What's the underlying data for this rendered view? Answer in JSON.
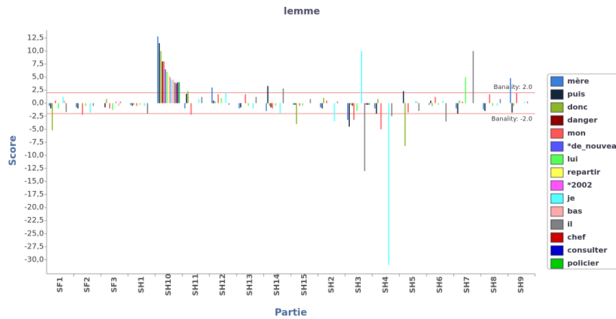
{
  "chart_data": {
    "type": "bar",
    "title": "lemme",
    "x_label": "Partie",
    "y_label": "Score",
    "categories": [
      "SF1",
      "SF2",
      "SF3",
      "SH1",
      "SH10",
      "SH11",
      "SH12",
      "SH13",
      "SH14",
      "SH15",
      "SH2",
      "SH3",
      "SH4",
      "SH5",
      "SH6",
      "SH7",
      "SH8",
      "SH9"
    ],
    "series": [
      {
        "name": "mère",
        "color": "#3a7fd9",
        "values": [
          -0.5,
          -0.8,
          0,
          -0.3,
          12.8,
          -1,
          3,
          -1,
          -1.5,
          -0.3,
          -0.8,
          -3.2,
          -1,
          0,
          -0.3,
          -1,
          -1.2,
          4.8
        ]
      },
      {
        "name": "puis",
        "color": "#14263a",
        "values": [
          -1,
          -1,
          -0.8,
          -0.5,
          11.5,
          1.8,
          0.5,
          -0.8,
          3.3,
          -0.3,
          -1,
          -4.5,
          -2,
          2.3,
          0.5,
          -2,
          -1.5,
          -1.8
        ]
      },
      {
        "name": "donc",
        "color": "#8db52a",
        "values": [
          -5.2,
          0,
          0.8,
          -0.3,
          10,
          2.3,
          0.3,
          0,
          -0.5,
          -4,
          1,
          -0.3,
          0.8,
          -8.2,
          -0.5,
          0.5,
          0,
          -0.5
        ]
      },
      {
        "name": "danger",
        "color": "#8b0000",
        "values": [
          0,
          0,
          0,
          0,
          8,
          0,
          0,
          0,
          -0.8,
          0,
          0,
          -0.5,
          0,
          0,
          0,
          0,
          0,
          0
        ]
      },
      {
        "name": "mon",
        "color": "#ff5555",
        "values": [
          0.5,
          -2.2,
          -1,
          -0.5,
          8,
          -2.2,
          1.7,
          1.7,
          -1,
          -0.5,
          0.5,
          -3.2,
          -5,
          -1.8,
          1.2,
          0.3,
          1.7,
          2
        ]
      },
      {
        "name": "*de_nouveau",
        "color": "#5555ff",
        "values": [
          0,
          0,
          0,
          0,
          6.5,
          0,
          0,
          0,
          0,
          0,
          0,
          0,
          0,
          0,
          0,
          0,
          0,
          0
        ]
      },
      {
        "name": "lui",
        "color": "#55ff55",
        "values": [
          -1,
          -0.5,
          -1.3,
          -0.3,
          6,
          0,
          1,
          -0.5,
          -0.5,
          -0.5,
          0,
          -1.5,
          0,
          0,
          -0.3,
          5,
          -0.5,
          0
        ]
      },
      {
        "name": "repartir",
        "color": "#ffff55",
        "values": [
          0,
          0,
          0,
          0,
          5.5,
          0,
          0,
          0,
          0,
          0,
          0,
          0,
          0,
          0,
          0,
          0,
          0,
          0
        ]
      },
      {
        "name": "*2002",
        "color": "#ff55ff",
        "values": [
          0,
          0,
          0.3,
          0,
          5,
          0,
          0,
          0,
          0,
          0,
          0,
          0,
          0,
          0,
          0,
          0,
          0,
          0
        ]
      },
      {
        "name": "je",
        "color": "#55ffff",
        "values": [
          1.2,
          -1.8,
          0,
          -0.5,
          4.5,
          0.8,
          2,
          -1,
          -2,
          0,
          -3.5,
          10,
          -31,
          0.5,
          0.5,
          0,
          -0.5,
          0.3
        ]
      },
      {
        "name": "bas",
        "color": "#ffaaaa",
        "values": [
          0.5,
          0,
          -0.5,
          0,
          4.5,
          0,
          0,
          0,
          0,
          0,
          0,
          0,
          0,
          0.3,
          0,
          0,
          0,
          0
        ]
      },
      {
        "name": "il",
        "color": "#808080",
        "values": [
          -1.7,
          -0.5,
          0.3,
          -2,
          4,
          1.2,
          -0.3,
          1.2,
          2.8,
          0.8,
          0.3,
          -13,
          -2.5,
          -1.5,
          -3.5,
          10,
          0.8,
          0.3
        ]
      },
      {
        "name": "chef",
        "color": "#cc0000",
        "values": [
          0,
          0,
          0,
          0,
          3.8,
          0,
          0,
          0,
          0,
          0,
          0,
          -0.3,
          0,
          0,
          0,
          0,
          0,
          0
        ]
      },
      {
        "name": "consulter",
        "color": "#0000cc",
        "values": [
          0,
          0,
          0,
          0,
          4,
          0,
          0,
          0,
          0,
          0,
          0,
          -0.3,
          0,
          0,
          0,
          0,
          0,
          0
        ]
      },
      {
        "name": "policier",
        "color": "#00cc00",
        "values": [
          0,
          0,
          0,
          0,
          4,
          0,
          0,
          0,
          0,
          0,
          0,
          -0.3,
          0,
          0,
          0,
          0,
          0,
          0
        ]
      }
    ],
    "ylim": [
      -32.7,
      14
    ],
    "yticks": [
      {
        "value": -30,
        "label": "-30,0"
      },
      {
        "value": -27.5,
        "label": "-27,5"
      },
      {
        "value": -25,
        "label": "-25,0"
      },
      {
        "value": -22.5,
        "label": "-22,5"
      },
      {
        "value": -20,
        "label": "-20,0"
      },
      {
        "value": -17.5,
        "label": "-17,5"
      },
      {
        "value": -15,
        "label": "-15,0"
      },
      {
        "value": -12.5,
        "label": "-12,5"
      },
      {
        "value": -10,
        "label": "-10,0"
      },
      {
        "value": -7.5,
        "label": "-7,5"
      },
      {
        "value": -5,
        "label": "-5,0"
      },
      {
        "value": -2.5,
        "label": "-2,5"
      },
      {
        "value": 0,
        "label": "0,0"
      },
      {
        "value": 2.5,
        "label": "2,5"
      },
      {
        "value": 5,
        "label": "5,0"
      },
      {
        "value": 7.5,
        "label": "7,5"
      },
      {
        "value": 10,
        "label": "10,0"
      },
      {
        "value": 12.5,
        "label": "12,5"
      }
    ],
    "annotations": [
      {
        "text": "Banality: 2.0",
        "value": 2
      },
      {
        "text": "Banality: -2.0",
        "value": -2
      }
    ],
    "legend": "right"
  }
}
